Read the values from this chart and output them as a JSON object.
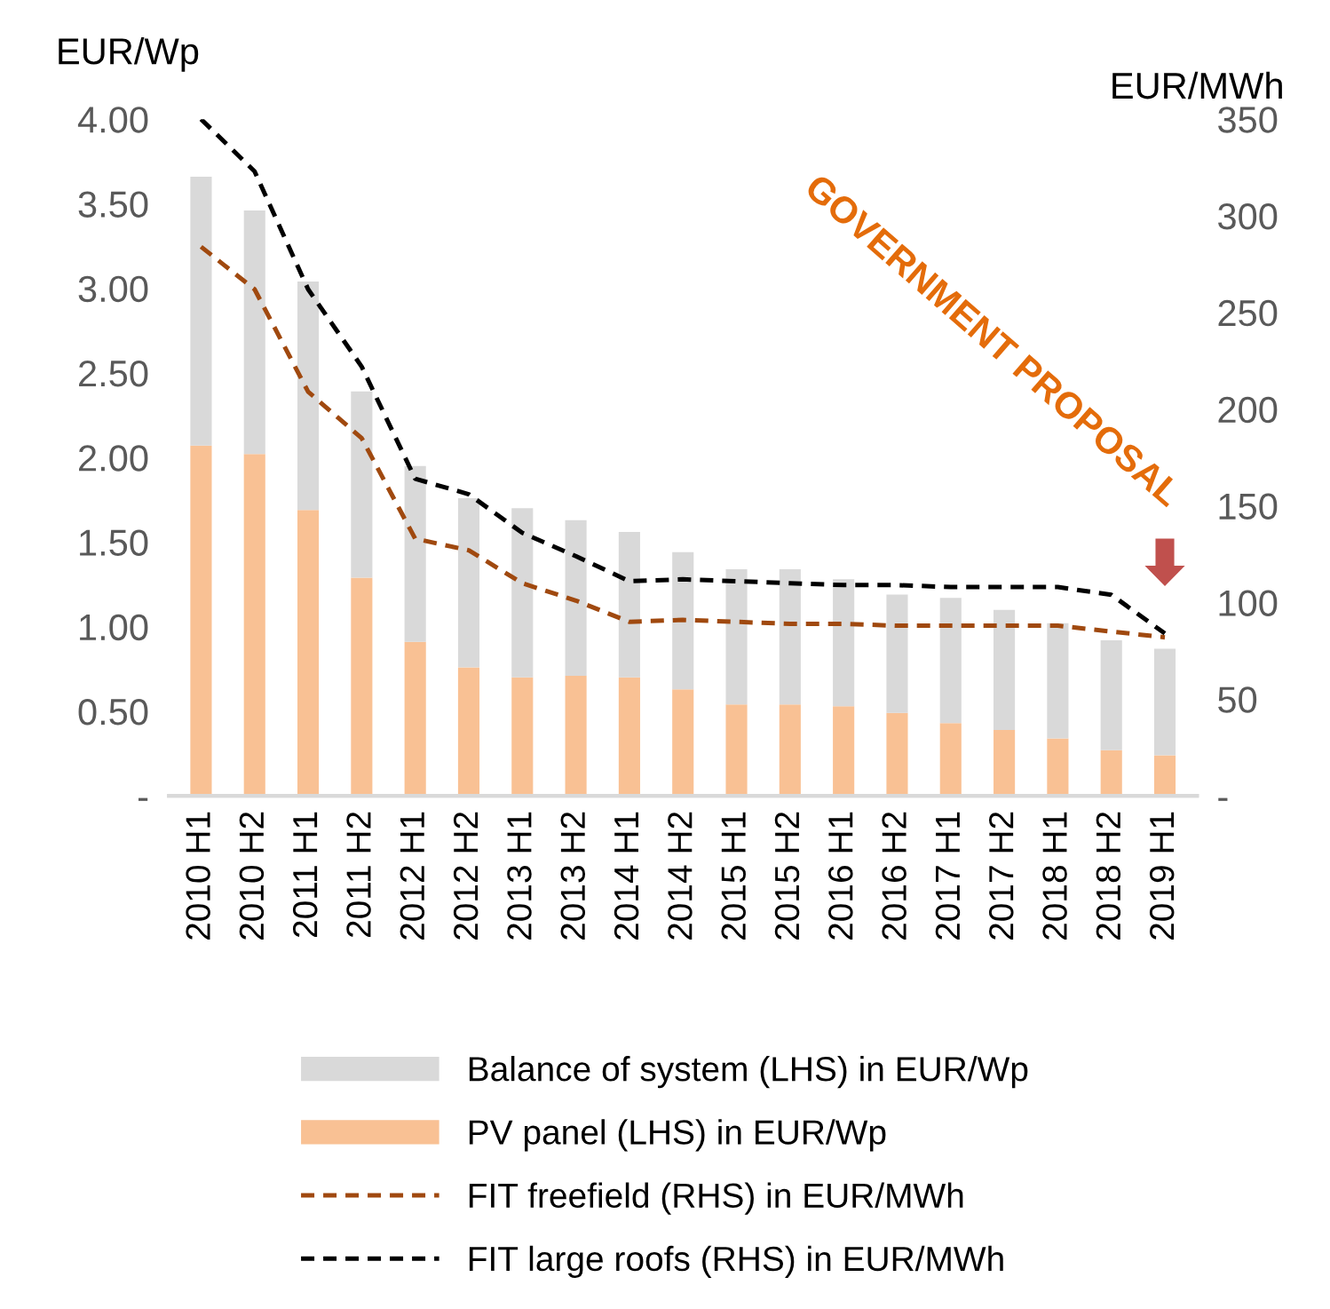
{
  "chart_data": {
    "type": "bar",
    "stacked": true,
    "ylabel": "EUR/Wp",
    "y2label": "EUR/MWh",
    "categories": [
      "2010 H1",
      "2010 H2",
      "2011 H1",
      "2011 H2",
      "2012 H1",
      "2012 H2",
      "2013 H1",
      "2013 H2",
      "2014 H1",
      "2014 H2",
      "2015 H1",
      "2015 H2",
      "2016 H1",
      "2016 H2",
      "2017 H1",
      "2017 H2",
      "2018 H1",
      "2018 H2",
      "2019 H1"
    ],
    "series": [
      {
        "name": "PV panel (LHS) in EUR/Wp",
        "color": "#f9c194",
        "values": [
          2.07,
          2.02,
          1.69,
          1.29,
          0.91,
          0.76,
          0.7,
          0.71,
          0.7,
          0.63,
          0.54,
          0.54,
          0.53,
          0.49,
          0.43,
          0.39,
          0.34,
          0.27,
          0.24
        ]
      },
      {
        "name": "Balance of system (LHS) in EUR/Wp",
        "color": "#d9d9d9",
        "values": [
          1.59,
          1.44,
          1.35,
          1.1,
          1.04,
          1.0,
          1.0,
          0.92,
          0.86,
          0.81,
          0.8,
          0.8,
          0.75,
          0.7,
          0.74,
          0.71,
          0.68,
          0.65,
          0.63
        ]
      },
      {
        "name": "FIT freefield (RHS) in EUR/MWh",
        "type": "line",
        "axis": "y2",
        "color": "#a0490f",
        "line_style": "dashed",
        "values": [
          284,
          262,
          209,
          185,
          133,
          127,
          110,
          101,
          90,
          91,
          90,
          89,
          89,
          88,
          88,
          88,
          88,
          85,
          82
        ]
      },
      {
        "name": "FIT large roofs (RHS) in EUR/MWh",
        "type": "line",
        "axis": "y2",
        "color": "#000000",
        "line_style": "dashed",
        "values": [
          350,
          323,
          262,
          222,
          164,
          156,
          136,
          124,
          111,
          112,
          111,
          110,
          109,
          109,
          108,
          108,
          108,
          104,
          84
        ]
      }
    ],
    "ylim": [
      0,
      4
    ],
    "yticks": [
      {
        "value": 0,
        "label": "-"
      },
      {
        "value": 0.5,
        "label": "0.50"
      },
      {
        "value": 1,
        "label": "1.00"
      },
      {
        "value": 1.5,
        "label": "1.50"
      },
      {
        "value": 2,
        "label": "2.00"
      },
      {
        "value": 2.5,
        "label": "2.50"
      },
      {
        "value": 3,
        "label": "3.00"
      },
      {
        "value": 3.5,
        "label": "3.50"
      },
      {
        "value": 4,
        "label": "4.00"
      }
    ],
    "y2lim": [
      0,
      350
    ],
    "y2ticks": [
      {
        "value": 0,
        "label": "-"
      },
      50,
      100,
      150,
      200,
      250,
      300,
      350
    ],
    "annotations": [
      "GOVERNMENT PROPOSAL"
    ],
    "legend": "bottom",
    "grid": false
  }
}
